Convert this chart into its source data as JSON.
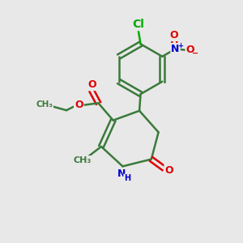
{
  "bg_color": "#e8e8e8",
  "bond_color": "#3a7a3a",
  "bond_width": 1.8,
  "atom_colors": {
    "O": "#dd0000",
    "N": "#0000cc",
    "Cl": "#00aa00",
    "C": "#3a7a3a",
    "H": "#0000cc"
  },
  "font_size": 9,
  "figsize": [
    3.0,
    3.0
  ],
  "dpi": 100,
  "xlim": [
    0,
    10
  ],
  "ylim": [
    0,
    10
  ]
}
